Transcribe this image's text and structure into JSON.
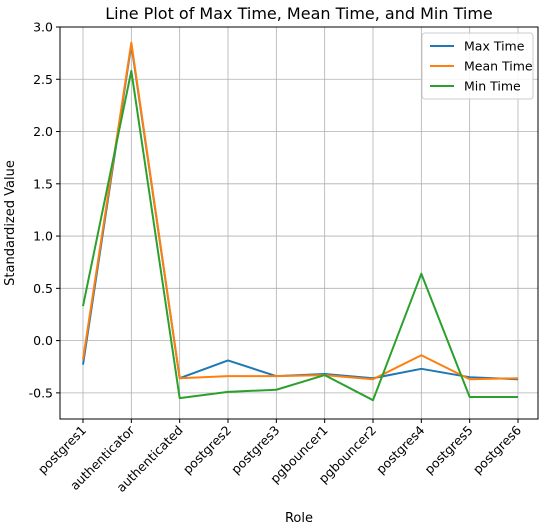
{
  "chart_data": {
    "type": "line",
    "title": "Line Plot of Max Time, Mean Time, and Min Time",
    "xlabel": "Role",
    "ylabel": "Standardized Value",
    "categories": [
      "postgres1",
      "authenticator",
      "authenticated",
      "postgres2",
      "postgres3",
      "pgbouncer1",
      "pgbouncer2",
      "postgres4",
      "postgres5",
      "postgres6"
    ],
    "ylim": [
      -0.75,
      3.0
    ],
    "yticks": [
      -0.5,
      0.0,
      0.5,
      1.0,
      1.5,
      2.0,
      2.5,
      3.0
    ],
    "ytick_labels": [
      "-0.5",
      "0.0",
      "0.5",
      "1.0",
      "1.5",
      "2.0",
      "2.5",
      "3.0"
    ],
    "grid": true,
    "legend_position": "top-right",
    "series": [
      {
        "name": "Max Time",
        "color": "#1f77b4",
        "values": [
          -0.23,
          2.83,
          -0.36,
          -0.19,
          -0.34,
          -0.32,
          -0.36,
          -0.27,
          -0.35,
          -0.37
        ]
      },
      {
        "name": "Mean Time",
        "color": "#ff7f0e",
        "values": [
          -0.18,
          2.85,
          -0.36,
          -0.34,
          -0.34,
          -0.33,
          -0.37,
          -0.14,
          -0.37,
          -0.36
        ]
      },
      {
        "name": "Min Time",
        "color": "#2ca02c",
        "values": [
          0.33,
          2.58,
          -0.55,
          -0.49,
          -0.47,
          -0.33,
          -0.57,
          0.64,
          -0.54,
          -0.54
        ]
      }
    ]
  }
}
